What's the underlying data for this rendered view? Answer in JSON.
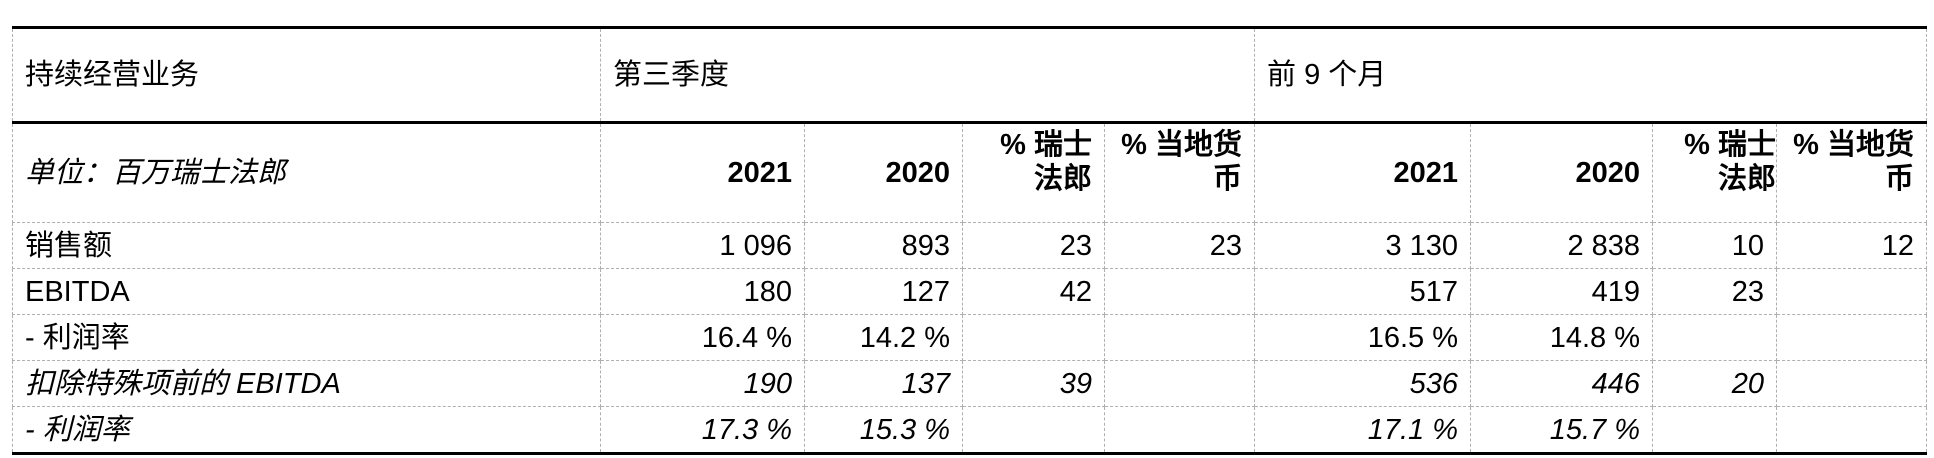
{
  "header": {
    "title": "持续经营业务",
    "q3": "第三季度",
    "nine_months": "前 9 个月"
  },
  "subheader": {
    "unit": "单位：百万瑞士法郎",
    "columns": [
      "2021",
      "2020",
      "% 瑞士法郎",
      "% 当地货币",
      "2021",
      "2020",
      "% 瑞士法郎",
      "% 当地货币"
    ]
  },
  "rows": [
    {
      "label": "销售额",
      "italic": false,
      "values": [
        "1 096",
        "893",
        "23",
        "23",
        "3 130",
        "2 838",
        "10",
        "12"
      ]
    },
    {
      "label": "EBITDA",
      "italic": false,
      "values": [
        "180",
        "127",
        "42",
        "",
        "517",
        "419",
        "23",
        ""
      ]
    },
    {
      "label": "- 利润率",
      "italic": false,
      "values": [
        "16.4 %",
        "14.2 %",
        "",
        "",
        "16.5 %",
        "14.8 %",
        "",
        ""
      ]
    },
    {
      "label": "扣除特殊项前的 EBITDA",
      "italic": true,
      "values": [
        "190",
        "137",
        "39",
        "",
        "536",
        "446",
        "20",
        ""
      ]
    },
    {
      "label": "- 利润率",
      "italic": true,
      "values": [
        "17.3 %",
        "15.3 %",
        "",
        "",
        "17.1 %",
        "15.7 %",
        "",
        ""
      ]
    }
  ]
}
